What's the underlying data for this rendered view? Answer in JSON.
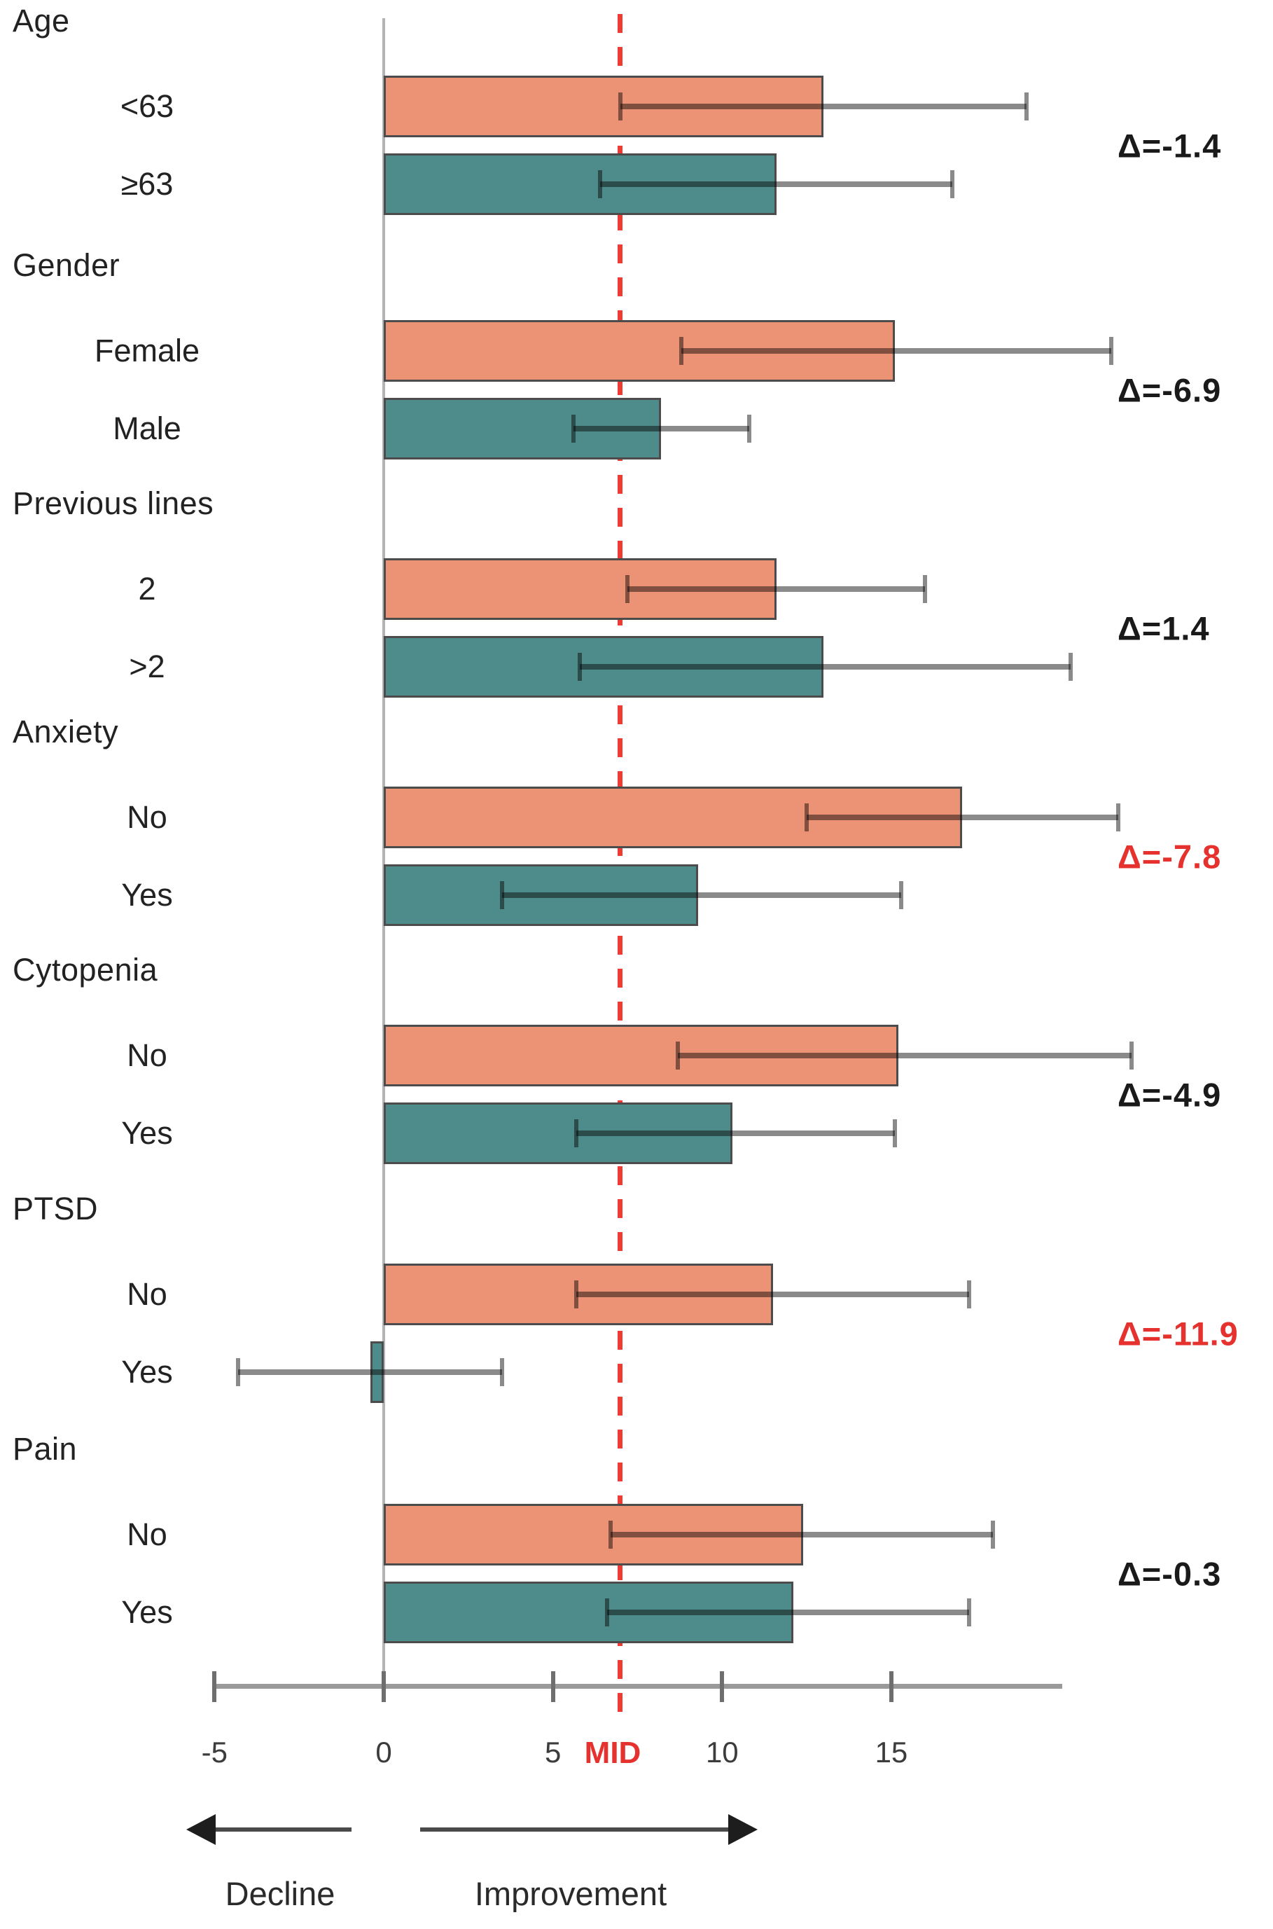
{
  "chart_data": {
    "type": "bar",
    "orientation": "horizontal",
    "title": "",
    "xlabel": "",
    "axis": {
      "min": -5,
      "max": 20,
      "ticks": [
        -5,
        0,
        5,
        10,
        15
      ],
      "mid_value": 7,
      "mid_label": "MID"
    },
    "legend": null,
    "arrows": {
      "left_label": "Decline",
      "right_label": "Improvement"
    },
    "colors": {
      "series_a_fill": "#EC9275",
      "series_b_fill": "#4E8C8B",
      "bar_border": "#4c4c4c",
      "whisker": "#8a8a8a",
      "mid_line": "#EE3B33",
      "delta_default": "#1a1a1a",
      "delta_highlight": "#E5322E",
      "text": "#222222",
      "axis": "#9a9a9a"
    },
    "groups": [
      {
        "label": "Age",
        "delta": "Δ=-1.4",
        "delta_red": false,
        "rows": [
          {
            "label": "<63",
            "series": "a",
            "value": 13.0,
            "lo": 7.0,
            "hi": 19.0
          },
          {
            "label": "≥63",
            "series": "b",
            "value": 11.6,
            "lo": 6.4,
            "hi": 16.8
          }
        ]
      },
      {
        "label": "Gender",
        "delta": "Δ=-6.9",
        "delta_red": false,
        "rows": [
          {
            "label": "Female",
            "series": "a",
            "value": 15.1,
            "lo": 8.8,
            "hi": 21.5
          },
          {
            "label": "Male",
            "series": "b",
            "value": 8.2,
            "lo": 5.6,
            "hi": 10.8
          }
        ]
      },
      {
        "label": "Previous lines",
        "delta": "Δ=1.4",
        "delta_red": false,
        "rows": [
          {
            "label": "2",
            "series": "a",
            "value": 11.6,
            "lo": 7.2,
            "hi": 16.0
          },
          {
            "label": ">2",
            "series": "b",
            "value": 13.0,
            "lo": 5.8,
            "hi": 20.3
          }
        ]
      },
      {
        "label": "Anxiety",
        "delta": "Δ=-7.8",
        "delta_red": true,
        "rows": [
          {
            "label": "No",
            "series": "a",
            "value": 17.1,
            "lo": 12.5,
            "hi": 21.7
          },
          {
            "label": "Yes",
            "series": "b",
            "value": 9.3,
            "lo": 3.5,
            "hi": 15.3
          }
        ]
      },
      {
        "label": "Cytopenia",
        "delta": "Δ=-4.9",
        "delta_red": false,
        "rows": [
          {
            "label": "No",
            "series": "a",
            "value": 15.2,
            "lo": 8.7,
            "hi": 22.1
          },
          {
            "label": "Yes",
            "series": "b",
            "value": 10.3,
            "lo": 5.7,
            "hi": 15.1
          }
        ]
      },
      {
        "label": "PTSD",
        "delta": "Δ=-11.9",
        "delta_red": true,
        "rows": [
          {
            "label": "No",
            "series": "a",
            "value": 11.5,
            "lo": 5.7,
            "hi": 17.3
          },
          {
            "label": "Yes",
            "series": "b",
            "value": -0.4,
            "lo": -4.3,
            "hi": 3.5
          }
        ]
      },
      {
        "label": "Pain",
        "delta": "Δ=-0.3",
        "delta_red": false,
        "rows": [
          {
            "label": "No",
            "series": "a",
            "value": 12.4,
            "lo": 6.7,
            "hi": 18.0
          },
          {
            "label": "Yes",
            "series": "b",
            "value": 12.1,
            "lo": 6.6,
            "hi": 17.3
          }
        ]
      }
    ]
  }
}
